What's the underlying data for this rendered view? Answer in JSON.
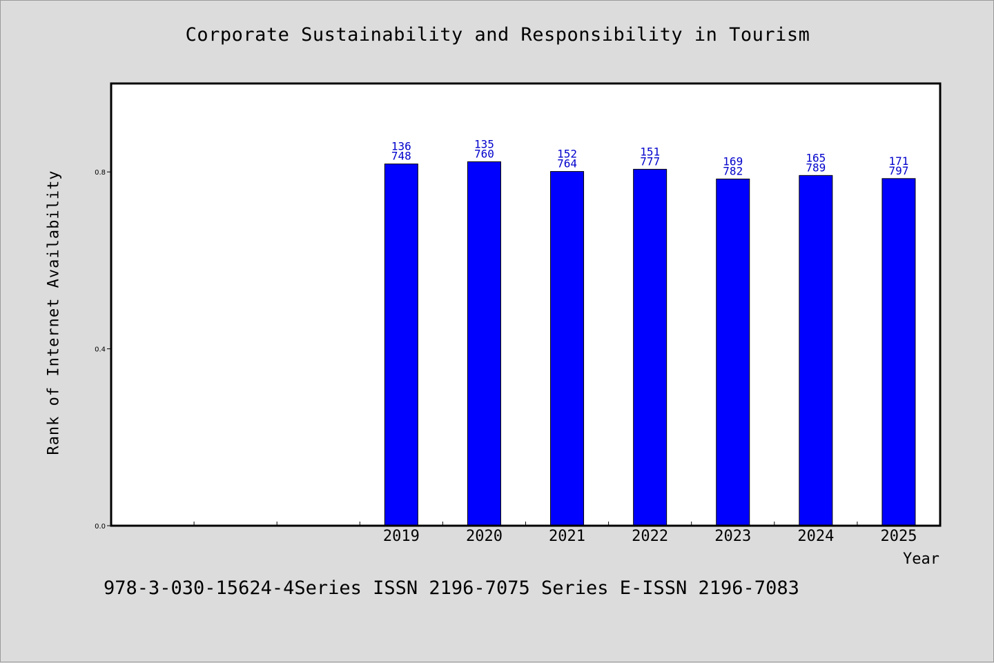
{
  "chart_data": {
    "type": "bar",
    "title": "Corporate Sustainability and Responsibility in Tourism",
    "xlabel": "Year",
    "ylabel": "Rank of Internet Availability",
    "categories": [
      "",
      "",
      "",
      "2019",
      "2020",
      "2021",
      "2022",
      "2023",
      "2024",
      "2025"
    ],
    "values": [
      null,
      null,
      null,
      0.818,
      0.823,
      0.801,
      0.806,
      0.784,
      0.792,
      0.785
    ],
    "data_labels": [
      null,
      null,
      null,
      [
        "136",
        "748"
      ],
      [
        "135",
        "760"
      ],
      [
        "152",
        "764"
      ],
      [
        "151",
        "777"
      ],
      [
        "169",
        "782"
      ],
      [
        "165",
        "789"
      ],
      [
        "171",
        "797"
      ]
    ],
    "y_ticks": [
      "0.0",
      "0.4",
      "0.8"
    ],
    "y_tick_values": [
      0.0,
      0.4,
      0.8
    ],
    "ylim": [
      0,
      1.0
    ],
    "grid": false,
    "legend": "none",
    "bar_color": "#0000ff",
    "label_color": "#0000cc"
  },
  "footer": "978-3-030-15624-4Series ISSN 2196-7075 Series E-ISSN 2196-7083"
}
